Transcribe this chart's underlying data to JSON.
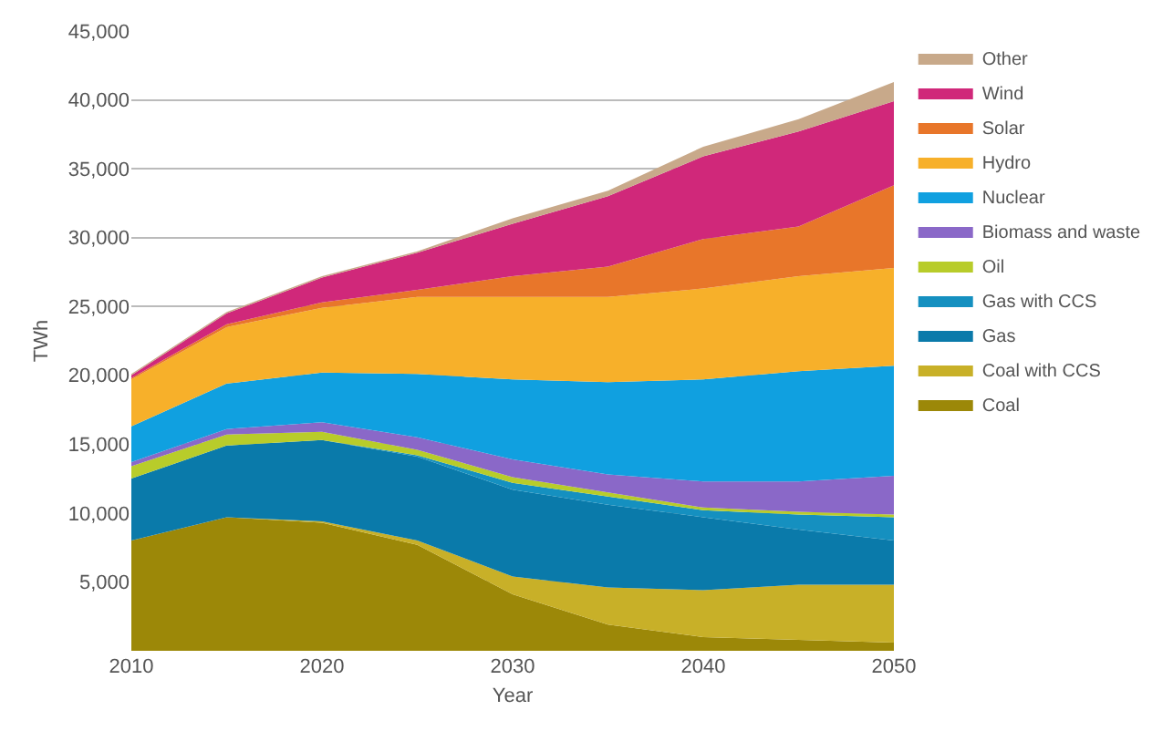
{
  "chart_data": {
    "type": "area",
    "stacked": true,
    "xlabel": "Year",
    "ylabel": "TWh",
    "x": [
      2010,
      2015,
      2020,
      2025,
      2030,
      2035,
      2040,
      2045,
      2050
    ],
    "xlim": [
      2010,
      2050
    ],
    "xticks": [
      2010,
      2020,
      2030,
      2040,
      2050
    ],
    "ylim": [
      0,
      45000
    ],
    "yticks": [
      {
        "value": 5000,
        "label": "5,000"
      },
      {
        "value": 10000,
        "label": "10,000"
      },
      {
        "value": 15000,
        "label": "15,000"
      },
      {
        "value": 20000,
        "label": "20,000"
      },
      {
        "value": 25000,
        "label": "25,000"
      },
      {
        "value": 30000,
        "label": "30,000"
      },
      {
        "value": 35000,
        "label": "35,000"
      },
      {
        "value": 40000,
        "label": "40,000"
      },
      {
        "value": 45000,
        "label": "45,000"
      }
    ],
    "grid": "y",
    "legend": "right",
    "series": [
      {
        "name": "Coal",
        "color": "#9c8808",
        "values": [
          8000,
          9700,
          9300,
          7700,
          4100,
          1900,
          1000,
          800,
          600
        ]
      },
      {
        "name": "Coal with CCS",
        "color": "#c8b028",
        "values": [
          0,
          0,
          100,
          300,
          1300,
          2700,
          3400,
          4000,
          4200
        ]
      },
      {
        "name": "Gas",
        "color": "#0a7aaa",
        "values": [
          4500,
          5200,
          5900,
          6100,
          6300,
          6000,
          5300,
          4000,
          3200
        ]
      },
      {
        "name": "Gas with CCS",
        "color": "#1590c0",
        "values": [
          0,
          0,
          0,
          100,
          500,
          600,
          500,
          1100,
          1700
        ]
      },
      {
        "name": "Oil",
        "color": "#b8cc2a",
        "values": [
          900,
          800,
          600,
          400,
          400,
          300,
          200,
          200,
          200
        ]
      },
      {
        "name": "Biomass and waste",
        "color": "#8a68c8",
        "values": [
          300,
          400,
          700,
          900,
          1300,
          1300,
          1900,
          2200,
          2800
        ]
      },
      {
        "name": "Nuclear",
        "color": "#10a0e0",
        "values": [
          2600,
          3300,
          3600,
          4600,
          5800,
          6700,
          7400,
          8000,
          8000
        ]
      },
      {
        "name": "Hydro",
        "color": "#f7b02a",
        "values": [
          3400,
          4100,
          4700,
          5600,
          6000,
          6200,
          6600,
          6900,
          7100
        ]
      },
      {
        "name": "Solar",
        "color": "#e8762a",
        "values": [
          100,
          200,
          400,
          500,
          1500,
          2200,
          3600,
          3600,
          6000
        ]
      },
      {
        "name": "Wind",
        "color": "#d0287a",
        "values": [
          200,
          800,
          1800,
          2700,
          3800,
          5100,
          6000,
          6900,
          6100
        ]
      },
      {
        "name": "Other",
        "color": "#c8a98a",
        "values": [
          100,
          100,
          100,
          100,
          400,
          400,
          700,
          900,
          1400
        ]
      }
    ]
  }
}
